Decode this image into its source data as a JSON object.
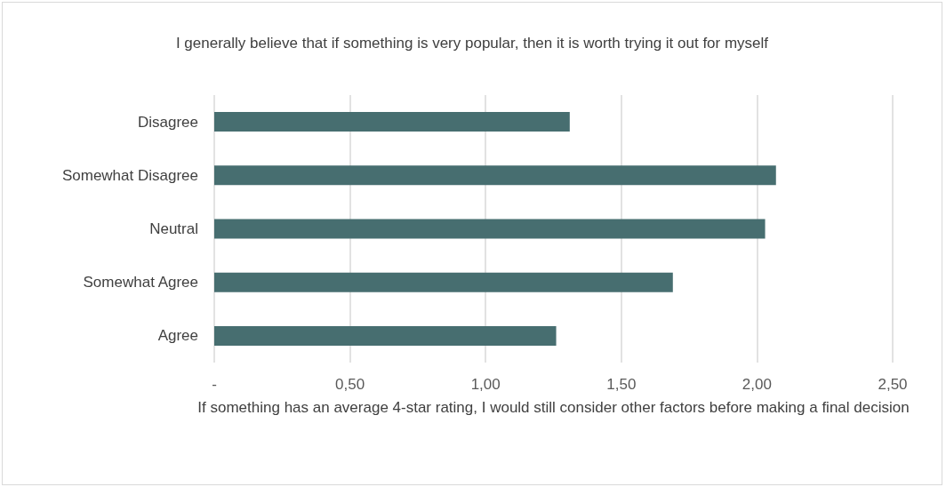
{
  "chart_data": {
    "type": "bar",
    "orientation": "horizontal",
    "title": "I generally believe that if something is very popular, then it is worth trying it out for myself",
    "xlabel": "If something has an average 4-star rating, I would still consider other factors before making a final decision",
    "categories": [
      "Disagree",
      "Somewhat Disagree",
      "Neutral",
      "Somewhat Agree",
      "Agree"
    ],
    "values": [
      1.31,
      2.07,
      2.03,
      1.69,
      1.26
    ],
    "color": "#476e70",
    "xlim": [
      0,
      2.5
    ],
    "xticks": [
      {
        "value": 0,
        "label": "-"
      },
      {
        "value": 0.5,
        "label": "0,50"
      },
      {
        "value": 1,
        "label": "1,00"
      },
      {
        "value": 1.5,
        "label": "1,50"
      },
      {
        "value": 2,
        "label": "2,00"
      },
      {
        "value": 2.5,
        "label": "2,50"
      }
    ],
    "grid": "x"
  }
}
